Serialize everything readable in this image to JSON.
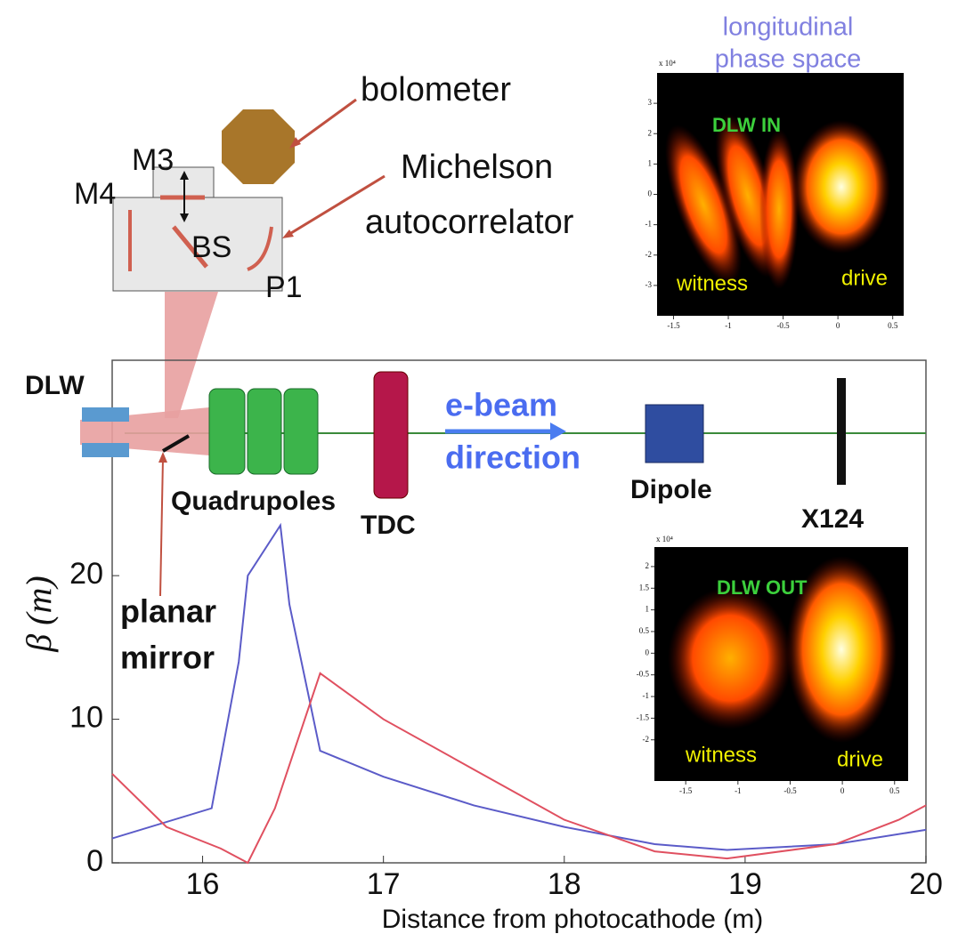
{
  "chart_data": {
    "type": "line",
    "xlabel": "Distance from photocathode (m)",
    "ylabel": "β (m)",
    "xlim": [
      15.5,
      20
    ],
    "ylim": [
      0,
      35
    ],
    "xticks": [
      16,
      17,
      18,
      19,
      20
    ],
    "yticks": [
      0,
      10,
      20
    ],
    "series": [
      {
        "color": "#5b5bc8",
        "x": [
          15.5,
          16.05,
          16.2,
          16.25,
          16.43,
          16.48,
          16.65,
          17,
          17.5,
          18,
          18.5,
          18.9,
          19.5,
          20
        ],
        "values": [
          1.7,
          3.8,
          14,
          20,
          23.5,
          18,
          7.8,
          6,
          4,
          2.5,
          1.3,
          0.9,
          1.3,
          2.3
        ]
      },
      {
        "color": "#e05060",
        "x": [
          15.5,
          15.8,
          16.1,
          16.25,
          16.4,
          16.65,
          17,
          17.5,
          18,
          18.5,
          18.9,
          19.5,
          19.85,
          20
        ],
        "values": [
          6.2,
          2.5,
          1,
          0,
          3.8,
          13.2,
          10,
          6.5,
          3,
          0.8,
          0.3,
          1.3,
          3,
          4
        ]
      }
    ]
  },
  "diagram": {
    "bolometer": "bolometer",
    "michelson": "Michelson",
    "autocorrelator": "autocorrelator",
    "m3": "M3",
    "m4": "M4",
    "bs": "BS",
    "p1": "P1",
    "dlw": "DLW",
    "ebeam": "e-beam",
    "direction": "direction",
    "quadrupoles": "Quadrupoles",
    "tdc": "TDC",
    "dipole": "Dipole",
    "x124": "X124",
    "planar": "planar",
    "mirror": "mirror",
    "inset_title_1": "longitudinal",
    "inset_title_2": "phase space"
  },
  "insets": [
    {
      "label": "DLW IN",
      "witness": "witness",
      "drive": "drive",
      "scale": "x 10⁴",
      "xlim": [
        -1.65,
        0.6
      ],
      "ylim": [
        -4,
        4
      ],
      "xticks": [
        -1.5,
        -1,
        -0.5,
        0,
        0.5
      ],
      "yticks": [
        3,
        2,
        1,
        0,
        -1,
        -2,
        -3
      ]
    },
    {
      "label": "DLW OUT",
      "witness": "witness",
      "drive": "drive",
      "scale": "x 10⁴",
      "xlim": [
        -1.8,
        0.63
      ],
      "ylim": [
        -2.95,
        2.45
      ],
      "xticks": [
        -1.5,
        -1,
        -0.5,
        0,
        0.5
      ],
      "yticks": [
        2,
        1.5,
        1,
        0.5,
        0,
        -0.5,
        -1,
        -1.5,
        -2
      ]
    }
  ]
}
